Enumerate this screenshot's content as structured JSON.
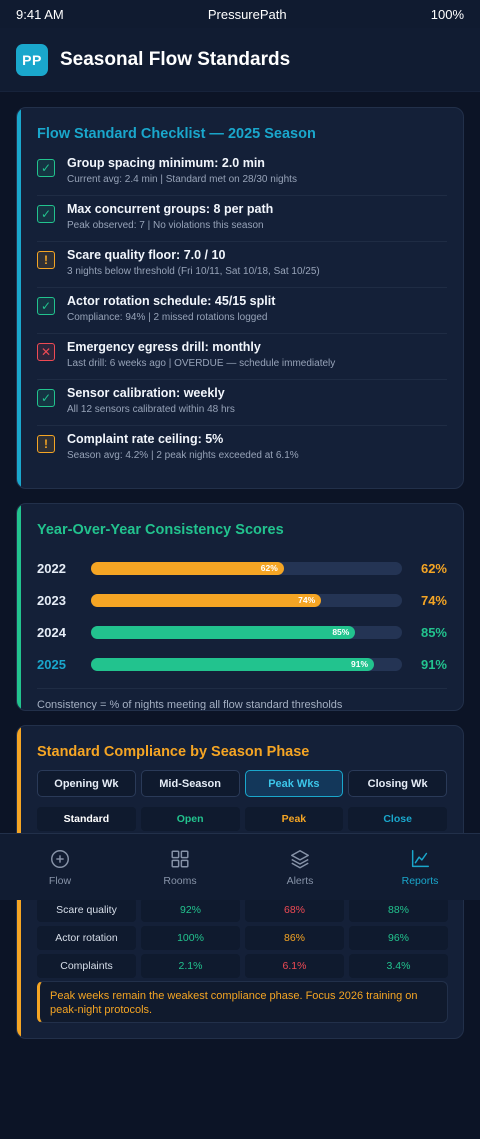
{
  "status_bar": {
    "time": "9:41 AM",
    "app": "PressurePath",
    "battery": "100%"
  },
  "header": {
    "logo": "PP",
    "title": "Seasonal Flow Standards"
  },
  "checklist": {
    "title": "Flow Standard Checklist — 2025 Season",
    "items": [
      {
        "status": "pass",
        "icon": "check-icon",
        "title": "Group spacing minimum: 2.0 min",
        "sub": "Current avg: 2.4 min | Standard met on 28/30 nights"
      },
      {
        "status": "pass",
        "icon": "check-icon",
        "title": "Max concurrent groups: 8 per path",
        "sub": "Peak observed: 7 | No violations this season"
      },
      {
        "status": "warn",
        "icon": "warning-icon",
        "title": "Scare quality floor: 7.0 / 10",
        "sub": "3 nights below threshold (Fri 10/11, Sat 10/18, Sat 10/25)"
      },
      {
        "status": "pass",
        "icon": "check-icon",
        "title": "Actor rotation schedule: 45/15 split",
        "sub": "Compliance: 94% | 2 missed rotations logged"
      },
      {
        "status": "fail",
        "icon": "cross-icon",
        "title": "Emergency egress drill: monthly",
        "sub": "Last drill: 6 weeks ago | OVERDUE — schedule immediately"
      },
      {
        "status": "pass",
        "icon": "check-icon",
        "title": "Sensor calibration: weekly",
        "sub": "All 12 sensors calibrated within 48 hrs"
      },
      {
        "status": "warn",
        "icon": "warning-icon",
        "title": "Complaint rate ceiling: 5%",
        "sub": "Season avg: 4.2% | 2 peak nights exceeded at 6.1%"
      }
    ]
  },
  "scores": {
    "title": "Year-Over-Year Consistency Scores",
    "rows": [
      {
        "year": "2022",
        "value": 62,
        "label": "62%",
        "color": "#f5a524"
      },
      {
        "year": "2023",
        "value": 74,
        "label": "74%",
        "color": "#f5a524"
      },
      {
        "year": "2024",
        "value": 85,
        "label": "85%",
        "color": "#22c38e"
      },
      {
        "year": "2025",
        "value": 91,
        "label": "91%",
        "color": "#22c38e",
        "highlight": true
      }
    ],
    "note": "Consistency = % of nights meeting all flow standard thresholds"
  },
  "compliance": {
    "title": "Standard Compliance by Season Phase",
    "tabs": [
      "Opening Wk",
      "Mid-Season",
      "Peak Wks",
      "Closing Wk"
    ],
    "active_tab": "Peak Wks",
    "headers": [
      "Standard",
      "Open",
      "Peak",
      "Close"
    ],
    "rows": [
      {
        "standard": "Scare quality",
        "open": "92%",
        "peak": "68%",
        "close": "88%"
      },
      {
        "standard": "Actor rotation",
        "open": "100%",
        "peak": "86%",
        "close": "96%"
      },
      {
        "standard": "Complaints",
        "open": "2.1%",
        "peak": "6.1%",
        "close": "3.4%"
      }
    ],
    "note": "Peak weeks remain the weakest compliance phase. Focus 2026 training on peak-night protocols."
  },
  "nav": {
    "items": [
      {
        "label": "Flow",
        "icon": "plus-circle-icon"
      },
      {
        "label": "Rooms",
        "icon": "grid-icon"
      },
      {
        "label": "Alerts",
        "icon": "layers-icon"
      },
      {
        "label": "Reports",
        "icon": "chart-icon",
        "active": true
      }
    ]
  },
  "colors": {
    "accent_blue": "#1aa7cc",
    "accent_green": "#22c38e",
    "accent_amber": "#f5a524",
    "accent_red": "#ef4a54",
    "background": "#0c1426"
  }
}
